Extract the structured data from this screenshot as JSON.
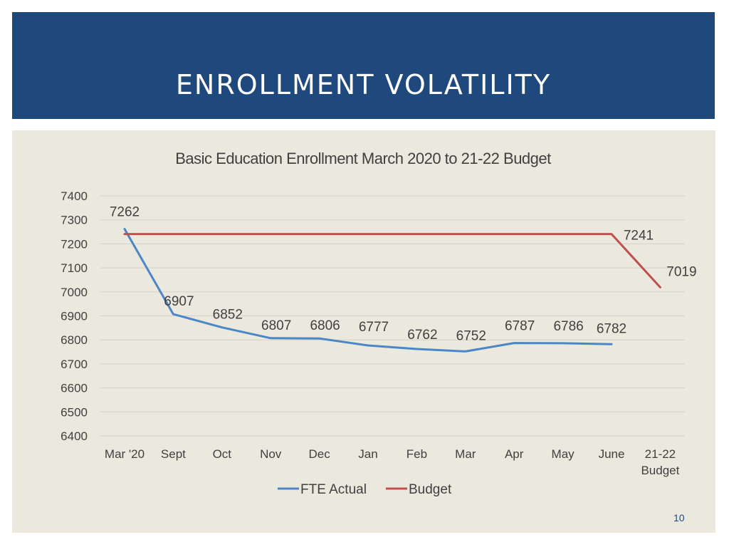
{
  "slide": {
    "title": "ENROLLMENT VOLATILITY",
    "page_number": "10"
  },
  "colors": {
    "header_bg": "#1f497d",
    "panel_bg": "#ebe8de",
    "fte_actual": "#4a86c8",
    "budget": "#c0504d",
    "text": "#404040"
  },
  "chart_data": {
    "type": "line",
    "title": "Basic Education Enrollment March 2020 to 21-22 Budget",
    "xlabel": "",
    "ylabel": "",
    "categories": [
      "Mar '20",
      "Sept",
      "Oct",
      "Nov",
      "Dec",
      "Jan",
      "Feb",
      "Mar",
      "Apr",
      "May",
      "June",
      "21-22 Budget"
    ],
    "ylim": [
      6400,
      7400
    ],
    "yticks": [
      6400,
      6500,
      6600,
      6700,
      6800,
      6900,
      7000,
      7100,
      7200,
      7300,
      7400
    ],
    "grid": true,
    "legend_position": "bottom",
    "series": [
      {
        "name": "FTE Actual",
        "color": "#4a86c8",
        "values": [
          7262,
          6907,
          6852,
          6807,
          6806,
          6777,
          6762,
          6752,
          6787,
          6786,
          6782,
          null
        ],
        "labels": [
          "7262",
          "6907",
          "6852",
          "6807",
          "6806",
          "6777",
          "6762",
          "6752",
          "6787",
          "6786",
          "6782",
          ""
        ]
      },
      {
        "name": "Budget",
        "color": "#c0504d",
        "values": [
          7241,
          7241,
          7241,
          7241,
          7241,
          7241,
          7241,
          7241,
          7241,
          7241,
          7241,
          7019
        ],
        "labels": [
          "",
          "",
          "",
          "",
          "",
          "",
          "",
          "",
          "",
          "",
          "7241",
          "7019"
        ]
      }
    ]
  }
}
